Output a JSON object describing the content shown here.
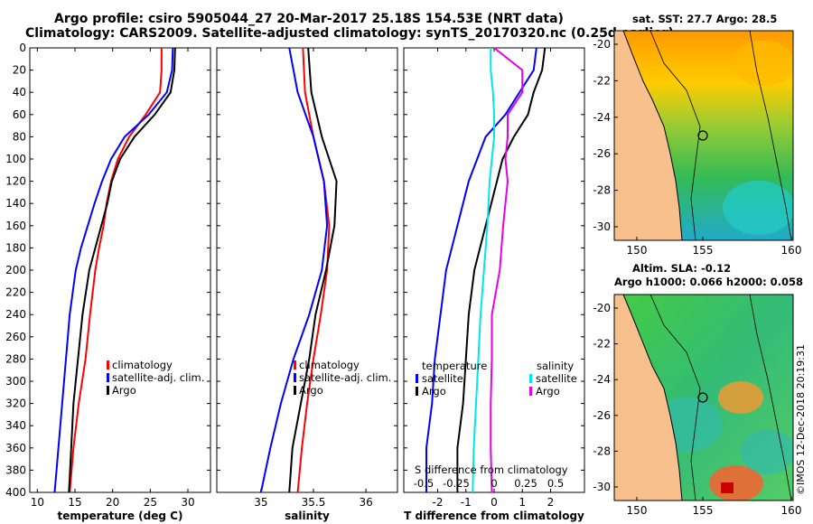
{
  "header": {
    "line1": "Argo profile: csiro 5905044_27 20-Mar-2017 25.18S 154.53E (NRT data)",
    "line2": "Climatology: CARS2009. Satellite-adjusted climatology: synTS_20170320.nc (0.25d earlier)"
  },
  "colors": {
    "climatology": "#ff0000",
    "satellite": "#0000ff",
    "argo": "#000000",
    "sal_satellite": "#00e5ee",
    "sal_argo": "#e600e6"
  },
  "depth_ticks": [
    0,
    20,
    40,
    60,
    80,
    100,
    120,
    140,
    160,
    180,
    200,
    220,
    240,
    260,
    280,
    300,
    320,
    340,
    360,
    380,
    400
  ],
  "chart_data": [
    {
      "type": "line",
      "name": "temperature-profile",
      "xlabel": "temperature (deg C)",
      "ylabel": "",
      "xlim": [
        9,
        33
      ],
      "ylim": [
        400,
        0
      ],
      "xticks": [
        10,
        15,
        20,
        25,
        30
      ],
      "legend": [
        "climatology",
        "satellite-adj. clim.",
        "Argo"
      ],
      "series": [
        {
          "name": "climatology",
          "depth": [
            0,
            20,
            40,
            60,
            80,
            100,
            120,
            140,
            160,
            180,
            200,
            240,
            280,
            320,
            360,
            400
          ],
          "values": [
            26.5,
            26.5,
            26.3,
            24.4,
            22.2,
            20.7,
            19.8,
            19.2,
            18.8,
            18.2,
            17.7,
            17,
            16.4,
            15.5,
            14.8,
            14.3
          ]
        },
        {
          "name": "satellite-adj. clim.",
          "depth": [
            0,
            20,
            40,
            60,
            80,
            100,
            120,
            140,
            160,
            180,
            200,
            240,
            280,
            320,
            360,
            400
          ],
          "values": [
            28,
            27.9,
            27.2,
            24.8,
            21.6,
            19.8,
            18.6,
            17.6,
            16.7,
            15.8,
            15.1,
            14.3,
            13.8,
            13.3,
            12.8,
            12.3
          ]
        },
        {
          "name": "Argo",
          "depth": [
            0,
            20,
            40,
            60,
            80,
            100,
            120,
            140,
            160,
            180,
            200,
            240,
            280,
            320,
            360,
            400
          ],
          "values": [
            28.3,
            28.2,
            27.7,
            25.6,
            22.9,
            21,
            19.9,
            19.3,
            18.5,
            17.7,
            16.9,
            16,
            15.4,
            14.8,
            14.5,
            14.2
          ]
        }
      ]
    },
    {
      "type": "line",
      "name": "salinity-profile",
      "xlabel": "salinity",
      "ylabel": "",
      "xlim": [
        34.58,
        36.3
      ],
      "ylim": [
        400,
        0
      ],
      "xticks": [
        35,
        35.5,
        36
      ],
      "legend": [
        "climatology",
        "satellite-adj. clim.",
        "Argo"
      ],
      "series": [
        {
          "name": "climatology",
          "depth": [
            0,
            40,
            80,
            120,
            160,
            200,
            240,
            280,
            320,
            360,
            400
          ],
          "values": [
            35.4,
            35.42,
            35.5,
            35.6,
            35.65,
            35.63,
            35.57,
            35.5,
            35.44,
            35.39,
            35.35
          ]
        },
        {
          "name": "satellite-adj. clim.",
          "depth": [
            0,
            40,
            80,
            120,
            160,
            200,
            240,
            280,
            320,
            360,
            400
          ],
          "values": [
            35.27,
            35.35,
            35.5,
            35.6,
            35.63,
            35.58,
            35.46,
            35.31,
            35.19,
            35.09,
            35.0
          ]
        },
        {
          "name": "Argo",
          "depth": [
            0,
            40,
            80,
            120,
            160,
            200,
            240,
            280,
            320,
            360,
            400
          ],
          "values": [
            35.45,
            35.48,
            35.58,
            35.72,
            35.7,
            35.62,
            35.52,
            35.46,
            35.38,
            35.3,
            35.27
          ]
        }
      ]
    },
    {
      "type": "line",
      "name": "difference-profile",
      "xlabel": "T difference from climatology",
      "ylabel": "",
      "xlim": [
        -3.2,
        3.2
      ],
      "ylim": [
        400,
        0
      ],
      "xticks": [
        -2,
        -1,
        0,
        1,
        2
      ],
      "top_axis_label": "S difference from climatology",
      "top_ticks": [
        "-0.5",
        "-0.25",
        "0",
        "0.25",
        "0.5"
      ],
      "legend_temperature": {
        "title": "temperature",
        "items": [
          "satellite",
          "Argo"
        ]
      },
      "legend_salinity": {
        "title": "salinity",
        "items": [
          "satellite",
          "Argo"
        ]
      },
      "series": [
        {
          "name": "T satellite",
          "depth": [
            0,
            20,
            40,
            60,
            80,
            100,
            120,
            160,
            200,
            240,
            280,
            320,
            360,
            400
          ],
          "values": [
            1.5,
            1.4,
            0.9,
            0.4,
            -0.3,
            -0.6,
            -0.9,
            -1.3,
            -1.7,
            -1.9,
            -2.1,
            -2.2,
            -2.4,
            -2.4
          ]
        },
        {
          "name": "T Argo",
          "depth": [
            0,
            20,
            40,
            60,
            80,
            100,
            120,
            160,
            200,
            240,
            280,
            320,
            360,
            400
          ],
          "values": [
            1.8,
            1.7,
            1.4,
            1.2,
            0.7,
            0.3,
            0.1,
            -0.3,
            -0.7,
            -0.9,
            -1.0,
            -1.1,
            -1.3,
            -1.3
          ]
        },
        {
          "name": "S satellite",
          "depth": [
            0,
            20,
            40,
            60,
            80,
            100,
            120,
            160,
            200,
            240,
            280,
            320,
            360,
            400
          ],
          "values": [
            -0.03,
            -0.03,
            -0.01,
            0.0,
            0.0,
            -0.02,
            -0.04,
            -0.06,
            -0.09,
            -0.12,
            -0.14,
            -0.16,
            -0.18,
            -0.19
          ]
        },
        {
          "name": "S Argo",
          "depth": [
            0,
            20,
            40,
            60,
            80,
            100,
            120,
            160,
            200,
            240,
            280,
            320,
            360,
            400
          ],
          "values": [
            0.0,
            0.25,
            0.25,
            0.12,
            0.12,
            0.1,
            0.12,
            0.08,
            0.05,
            -0.02,
            -0.02,
            -0.03,
            -0.03,
            -0.02
          ]
        }
      ]
    }
  ],
  "maps": [
    {
      "name": "sst-map",
      "title": "sat. SST: 27.7 Argo: 28.5",
      "lat_ticks": [
        "-20",
        "-22",
        "-24",
        "-26",
        "-28",
        "-30"
      ],
      "lon_ticks": [
        "150",
        "155",
        "160"
      ]
    },
    {
      "name": "sla-map",
      "title_line1": "Altim. SLA: -0.12",
      "title_line2": "Argo h1000: 0.066 h2000: 0.058",
      "lat_ticks": [
        "-20",
        "-22",
        "-24",
        "-26",
        "-28",
        "-30"
      ],
      "lon_ticks": [
        "150",
        "155",
        "160"
      ]
    }
  ],
  "watermark": "©IMOS 12-Dec-2018 20:19:31"
}
